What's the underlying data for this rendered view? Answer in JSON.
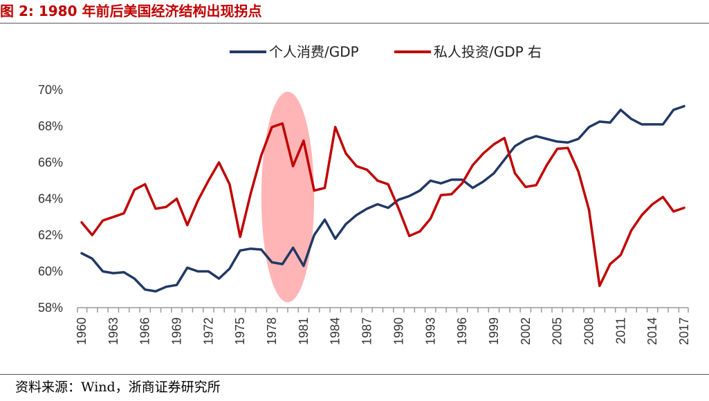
{
  "title": "图 2: 1980 年前后美国经济结构出现拐点",
  "source": "资料来源：Wind，浙商证券研究所",
  "chart_data": {
    "type": "line",
    "x": [
      1960,
      1961,
      1962,
      1963,
      1964,
      1965,
      1966,
      1967,
      1968,
      1969,
      1970,
      1971,
      1972,
      1973,
      1974,
      1975,
      1976,
      1977,
      1978,
      1979,
      1980,
      1981,
      1982,
      1983,
      1984,
      1985,
      1986,
      1987,
      1988,
      1989,
      1990,
      1991,
      1992,
      1993,
      1994,
      1995,
      1996,
      1997,
      1998,
      1999,
      2000,
      2001,
      2002,
      2003,
      2004,
      2005,
      2006,
      2007,
      2008,
      2009,
      2010,
      2011,
      2012,
      2013,
      2014,
      2015,
      2016,
      2017
    ],
    "x_tick_labels": [
      "1960",
      "1963",
      "1966",
      "1969",
      "1972",
      "1975",
      "1978",
      "1981",
      "1984",
      "1987",
      "1990",
      "1993",
      "1996",
      "1999",
      "2002",
      "2005",
      "2008",
      "2011",
      "2014",
      "2017"
    ],
    "y_tick_labels": [
      "58%",
      "60%",
      "62%",
      "64%",
      "66%",
      "68%",
      "70%"
    ],
    "ylim": [
      58,
      70
    ],
    "series": [
      {
        "name": "个人消费/GDP",
        "color": "#203864",
        "values": [
          61.0,
          60.7,
          60.0,
          59.9,
          59.95,
          59.6,
          59.0,
          58.9,
          59.15,
          59.25,
          60.2,
          60.0,
          60.0,
          59.6,
          60.15,
          61.15,
          61.25,
          61.2,
          60.5,
          60.4,
          61.3,
          60.3,
          62.0,
          62.85,
          61.8,
          62.6,
          63.1,
          63.45,
          63.7,
          63.5,
          63.95,
          64.15,
          64.45,
          65.0,
          64.85,
          65.05,
          65.05,
          64.6,
          64.95,
          65.4,
          66.15,
          66.9,
          67.25,
          67.45,
          67.3,
          67.15,
          67.1,
          67.3,
          67.95,
          68.25,
          68.2,
          68.9,
          68.4,
          68.1,
          68.1,
          68.1,
          68.9,
          69.1
        ]
      },
      {
        "name": "私人投资/GDP 右",
        "color": "#c00000",
        "values": [
          62.7,
          62.0,
          62.8,
          63.0,
          63.2,
          64.5,
          64.8,
          63.45,
          63.55,
          64.0,
          62.55,
          63.9,
          65.0,
          66.0,
          64.8,
          61.9,
          64.3,
          66.4,
          67.95,
          68.15,
          65.8,
          67.2,
          64.45,
          64.6,
          67.95,
          66.5,
          65.8,
          65.6,
          65.0,
          64.8,
          63.45,
          61.95,
          62.2,
          62.9,
          64.2,
          64.25,
          64.85,
          65.85,
          66.5,
          67.0,
          67.35,
          65.4,
          64.65,
          64.75,
          65.85,
          66.75,
          66.8,
          65.5,
          63.4,
          59.2,
          60.4,
          60.9,
          62.25,
          63.1,
          63.7,
          64.1,
          63.3,
          63.5
        ]
      }
    ],
    "highlight_region": {
      "x_range": [
        1977,
        1982
      ],
      "y_range": [
        58.3,
        69.9
      ],
      "color": "#ff9999"
    },
    "grid": false,
    "legend_position": "top-center"
  }
}
